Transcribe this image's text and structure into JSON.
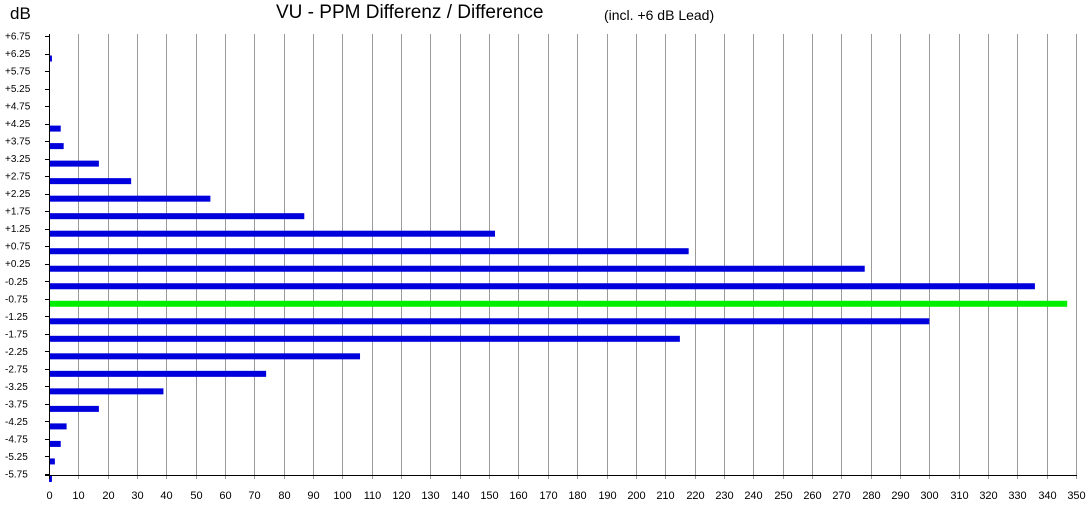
{
  "header": {
    "unit_label": "dB",
    "title": "VU - PPM Differenz / Difference",
    "subtitle": "(incl. +6 dB Lead)"
  },
  "chart_data": {
    "type": "bar",
    "orientation": "horizontal",
    "title": "VU - PPM Differenz / Difference",
    "subtitle": "(incl. +6 dB Lead)",
    "ylabel": "dB",
    "xlabel": "",
    "xlim": [
      0,
      350
    ],
    "x_ticks": [
      0,
      10,
      20,
      30,
      40,
      50,
      60,
      70,
      80,
      90,
      100,
      110,
      120,
      130,
      140,
      150,
      160,
      170,
      180,
      190,
      200,
      210,
      220,
      230,
      240,
      250,
      260,
      270,
      280,
      290,
      300,
      310,
      320,
      330,
      340,
      350
    ],
    "grid": "vertical",
    "categories": [
      "+6.75",
      "+6.25",
      "+5.75",
      "+5.25",
      "+4.75",
      "+4.25",
      "+3.75",
      "+3.25",
      "+2.75",
      "+2.25",
      "+1.75",
      "+1.25",
      "+0.75",
      "+0.25",
      "-0.25",
      "-0.75",
      "-1.25",
      "-1.75",
      "-2.25",
      "-2.75",
      "-3.25",
      "-3.75",
      "-4.25",
      "-4.75",
      "-5.25",
      "-5.75"
    ],
    "values": [
      0,
      1,
      0,
      0,
      0,
      4,
      5,
      17,
      28,
      55,
      87,
      152,
      218,
      278,
      336,
      347,
      300,
      215,
      106,
      74,
      39,
      17,
      6,
      4,
      2,
      1
    ],
    "highlight_index": 15,
    "colors": {
      "bar": "#0000dd",
      "highlight": "#00ee00",
      "grid": "#9a9a9a"
    }
  }
}
